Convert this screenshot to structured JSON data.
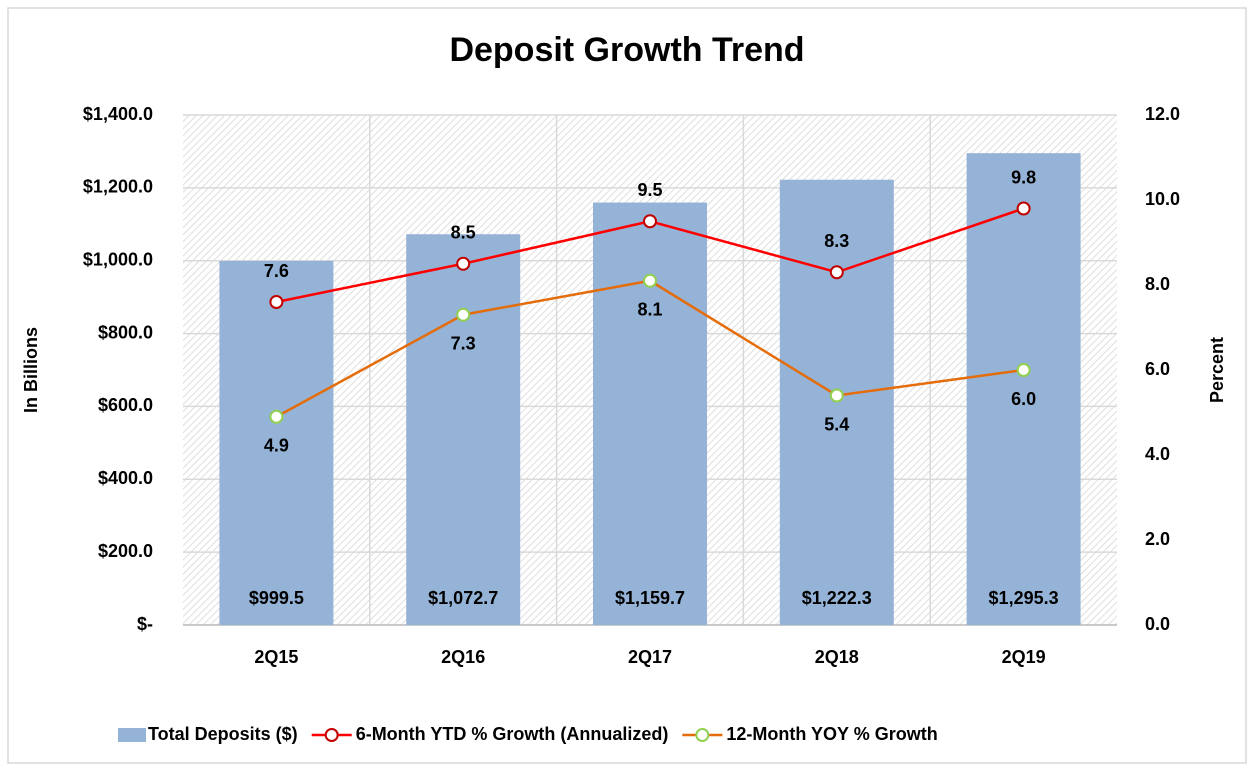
{
  "chart_data": {
    "type": "bar-line",
    "title": "Deposit Growth Trend",
    "y_label": "In Billions",
    "y2_label": "Percent",
    "categories": [
      "2Q15",
      "2Q16",
      "2Q17",
      "2Q18",
      "2Q19"
    ],
    "series": [
      {
        "name": "Total Deposits ($)",
        "type": "bar",
        "color": "#95b3d7",
        "values": [
          999.5,
          1072.7,
          1159.7,
          1222.3,
          1295.3
        ],
        "value_labels": [
          "$999.5",
          "$1,072.7",
          "$1,159.7",
          "$1,222.3",
          "$1,295.3"
        ]
      },
      {
        "name": "6-Month YTD % Growth (Annualized)",
        "type": "line",
        "axis": "y2",
        "color": "#ff0000",
        "marker_edge": "#c00000",
        "values": [
          7.6,
          8.5,
          9.5,
          8.3,
          9.8
        ],
        "value_labels": [
          "7.6",
          "8.5",
          "9.5",
          "8.3",
          "9.8"
        ]
      },
      {
        "name": "12-Month YOY % Growth",
        "type": "line",
        "axis": "y2",
        "color": "#e46c0a",
        "marker_edge": "#92d050",
        "values": [
          4.9,
          7.3,
          8.1,
          5.4,
          6.0
        ],
        "value_labels": [
          "4.9",
          "7.3",
          "8.1",
          "5.4",
          "6.0"
        ]
      }
    ],
    "ylim": [
      0,
      1400
    ],
    "yticks": [
      {
        "value": 0,
        "label": "$-"
      },
      {
        "value": 200,
        "label": "$200.0"
      },
      {
        "value": 400,
        "label": "$400.0"
      },
      {
        "value": 600,
        "label": "$600.0"
      },
      {
        "value": 800,
        "label": "$800.0"
      },
      {
        "value": 1000,
        "label": "$1,000.0"
      },
      {
        "value": 1200,
        "label": "$1,200.0"
      },
      {
        "value": 1400,
        "label": "$1,400.0"
      }
    ],
    "y2lim": [
      0,
      12
    ],
    "y2ticks": [
      {
        "value": 0,
        "label": "0.0"
      },
      {
        "value": 2,
        "label": "2.0"
      },
      {
        "value": 4,
        "label": "4.0"
      },
      {
        "value": 6,
        "label": "6.0"
      },
      {
        "value": 8,
        "label": "8.0"
      },
      {
        "value": 10,
        "label": "10.0"
      },
      {
        "value": 12,
        "label": "12.0"
      }
    ],
    "grid": true,
    "legend": "bottom"
  }
}
